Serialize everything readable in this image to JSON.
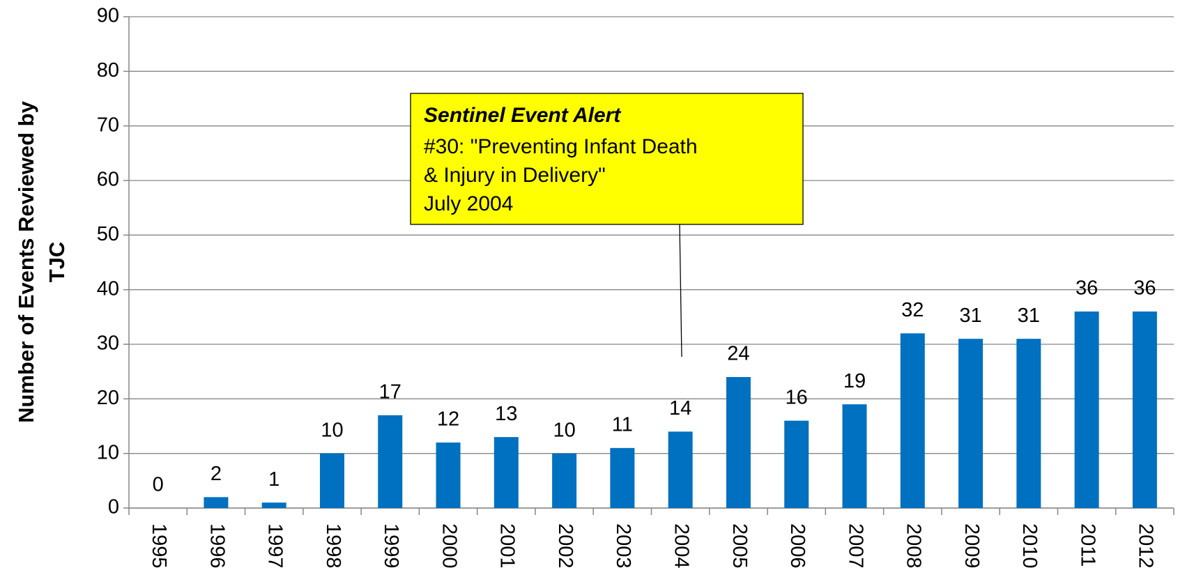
{
  "chart_data": {
    "type": "bar",
    "y_axis_label": [
      "Number of Events Reviewed by",
      "TJC"
    ],
    "categories": [
      "1995",
      "1996",
      "1997",
      "1998",
      "1999",
      "2000",
      "2001",
      "2002",
      "2003",
      "2004",
      "2005",
      "2006",
      "2007",
      "2008",
      "2009",
      "2010",
      "2011",
      "2012"
    ],
    "values": [
      0,
      2,
      1,
      10,
      17,
      12,
      13,
      10,
      11,
      14,
      24,
      16,
      19,
      32,
      31,
      31,
      36,
      36
    ],
    "color": "#0070c0",
    "ylim": [
      0,
      90
    ],
    "yticks": [
      0,
      10,
      20,
      30,
      40,
      50,
      60,
      70,
      80,
      90
    ],
    "grid": true,
    "annotation": {
      "title": "Sentinel Event Alert",
      "lines": [
        "#30: \"Preventing  Infant Death",
        "& Injury in Delivery\"",
        "July 2004"
      ],
      "color": "#ffff00"
    }
  }
}
